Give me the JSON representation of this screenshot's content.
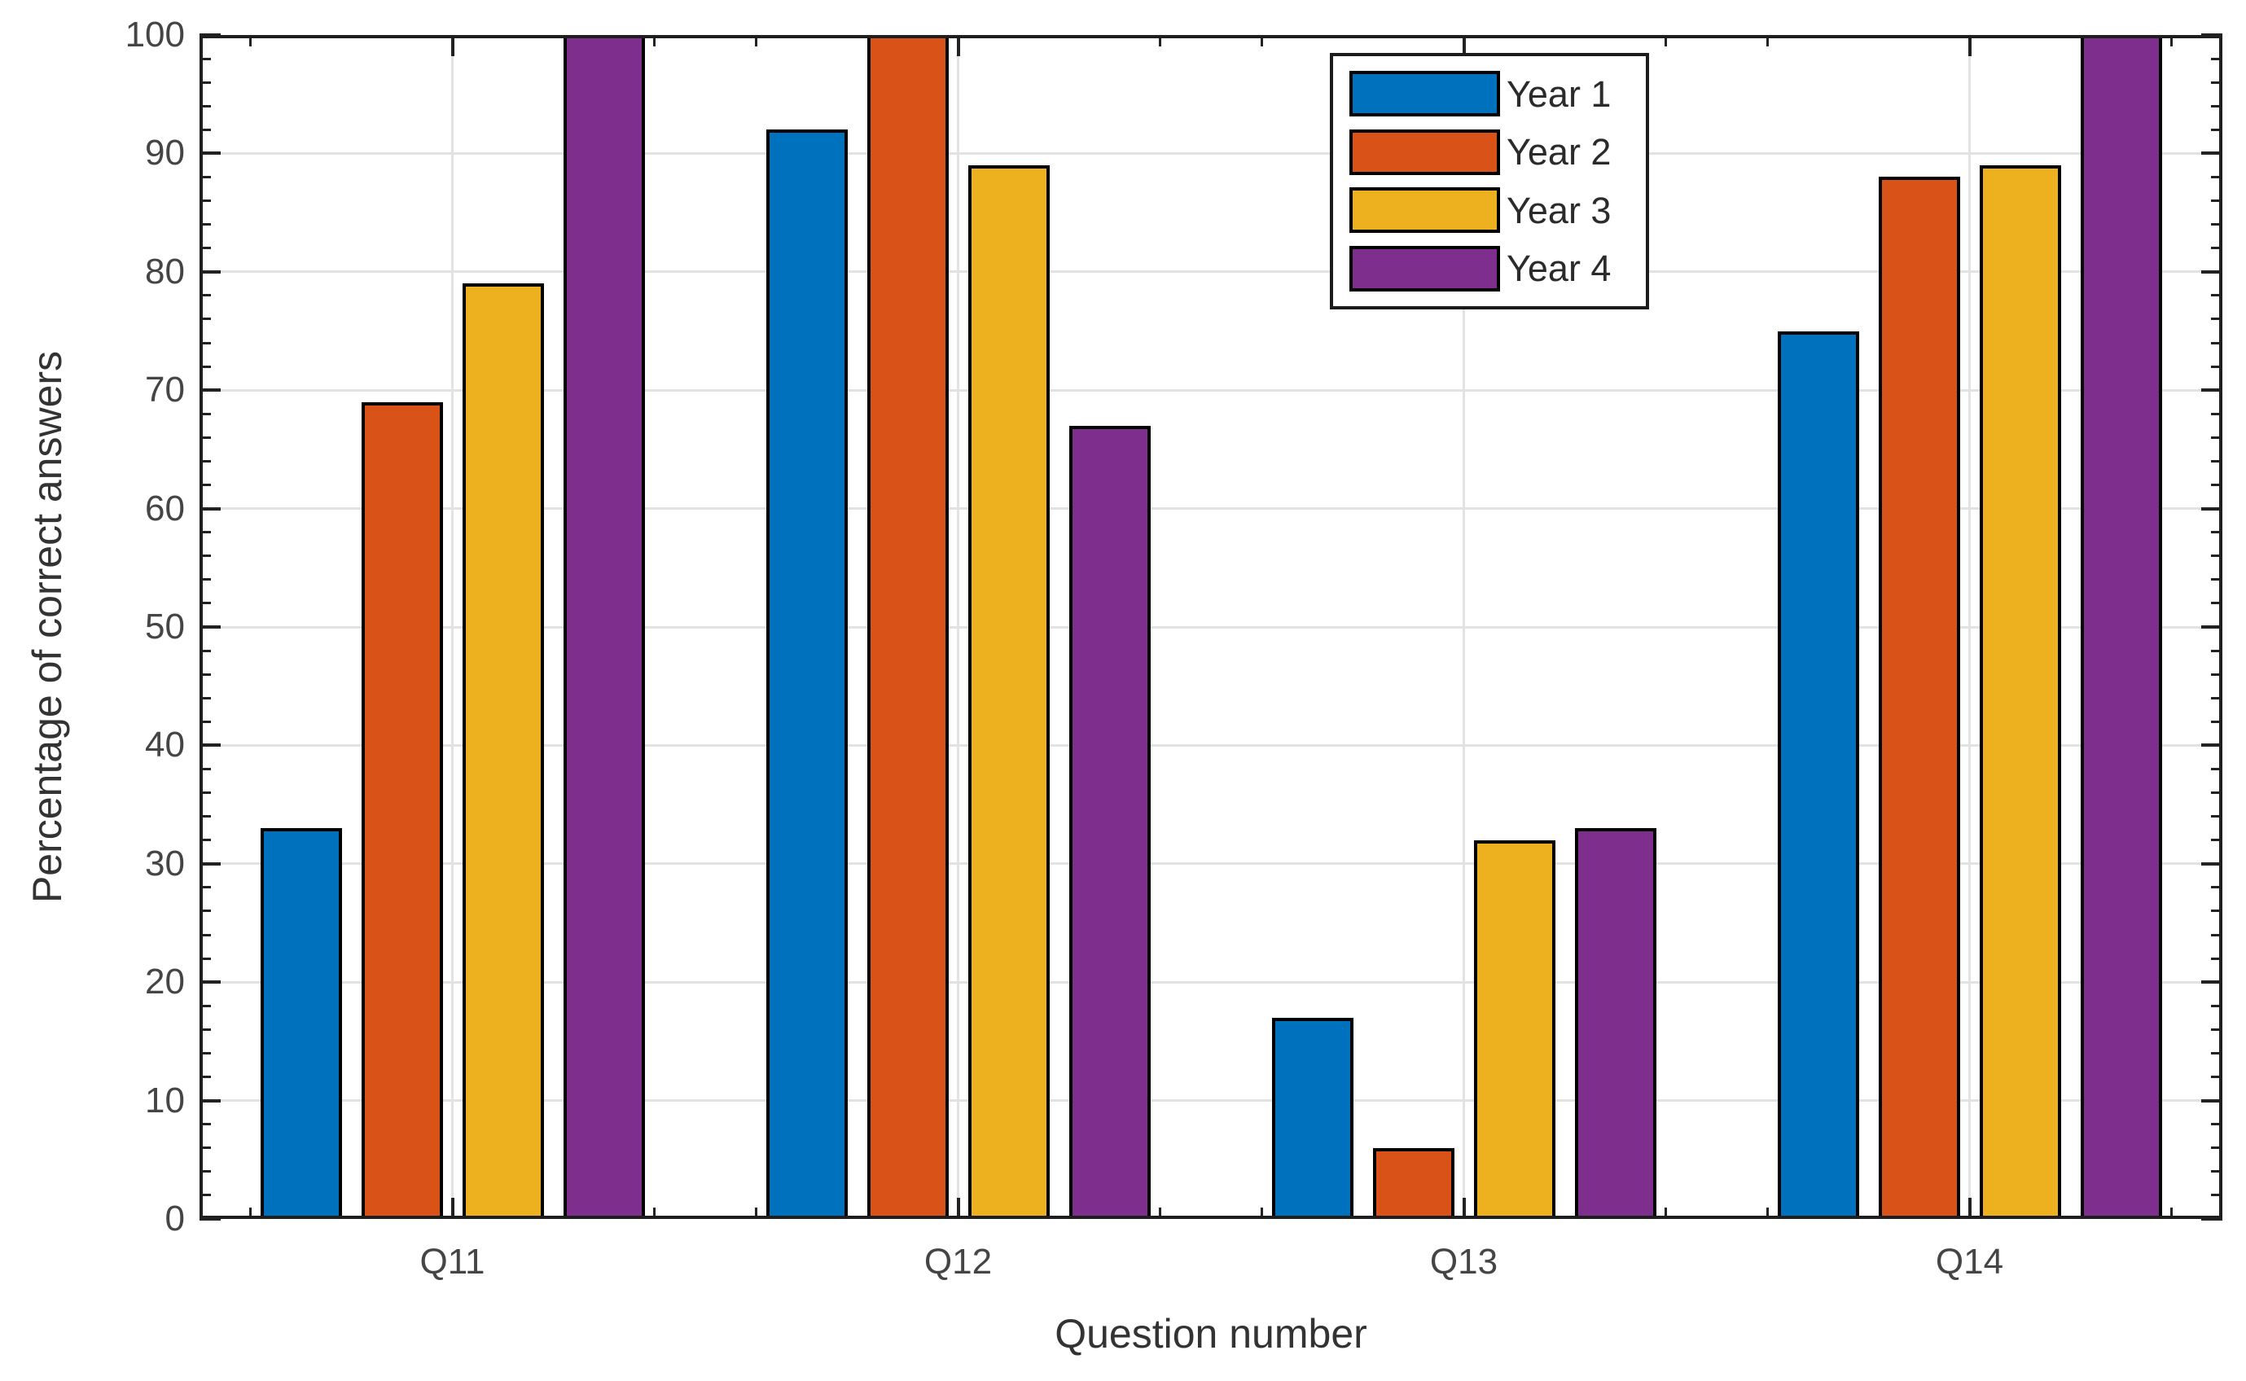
{
  "figure": {
    "background_color": "#ffffff"
  },
  "chart_data": {
    "type": "bar",
    "title": "",
    "xlabel": "Question number",
    "ylabel": "Percentage of correct answers",
    "categories": [
      "Q11",
      "Q12",
      "Q13",
      "Q14"
    ],
    "series": [
      {
        "name": "Year 1",
        "color": "#0072BD",
        "values": [
          33,
          92,
          17,
          75
        ]
      },
      {
        "name": "Year 2",
        "color": "#D95319",
        "values": [
          69,
          100,
          6,
          88
        ]
      },
      {
        "name": "Year 3",
        "color": "#EDB120",
        "values": [
          79,
          89,
          32,
          89
        ]
      },
      {
        "name": "Year 4",
        "color": "#7E2F8E",
        "values": [
          100,
          67,
          33,
          100
        ]
      }
    ],
    "ylim": [
      0,
      100
    ],
    "yticks": [
      0,
      10,
      20,
      30,
      40,
      50,
      60,
      70,
      80,
      90,
      100
    ],
    "ytick_step": 10,
    "y_minor_step": 2,
    "grid": "on",
    "gridline_color": "#e2e2e2",
    "bar_edge_color": "#000000",
    "axis_color": "#222222",
    "legend": {
      "position": "top-right",
      "labels": [
        "Year 1",
        "Year 2",
        "Year 3",
        "Year 4"
      ]
    }
  }
}
